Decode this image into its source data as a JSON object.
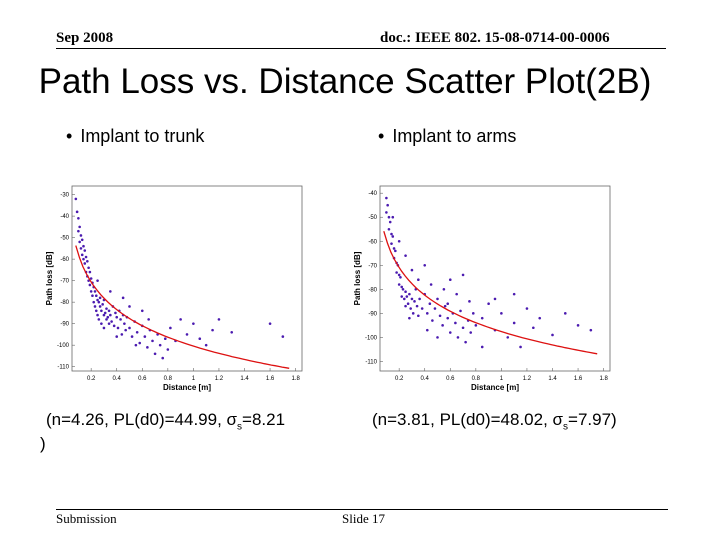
{
  "header": {
    "date": "Sep 2008",
    "doc_id": "doc.: IEEE 802. 15-08-0714-00-0006"
  },
  "slide_title": "Path Loss vs. Distance Scatter Plot(2B)",
  "bullets": [
    "Implant to trunk",
    "Implant to arms"
  ],
  "params": {
    "left_pre": "(n=4.26, PL(d0)=44.99, σ",
    "left_sub": "s",
    "left_post": "=8.21",
    "left_wrap": ")",
    "right_pre": "(n=3.81, PL(d0)=48.02, σ",
    "right_sub": "s",
    "right_post": "=7.97)"
  },
  "footer": {
    "submission": "Submission",
    "slide": "Slide 17"
  },
  "colors": {
    "points": "#4b1bb0",
    "fit_line": "#dd1111",
    "axes": "#666666"
  },
  "chart_data": [
    {
      "type": "scatter",
      "title": "Implant to trunk",
      "xlabel": "Distance [m]",
      "ylabel": "Path loss [dB]",
      "xlim": [
        0.05,
        1.85
      ],
      "ylim": [
        -112,
        -26
      ],
      "xticks": [
        0.2,
        0.4,
        0.6,
        0.8,
        1,
        1.2,
        1.4,
        1.6,
        1.8
      ],
      "xtick_labels": [
        "0.2",
        "0.4",
        "0.6",
        "0.8",
        "1",
        "1.2",
        "1.4",
        "1.6",
        "1.8"
      ],
      "yticks": [
        -30,
        -40,
        -50,
        -60,
        -70,
        -80,
        -90,
        -100,
        -110
      ],
      "ytick_labels": [
        "-30",
        "-40",
        "-50",
        "-60",
        "-70",
        "-80",
        "-90",
        "-100",
        "-110"
      ],
      "fit": {
        "n": 4.26,
        "pl_d0": 44.99,
        "d0": 0.05,
        "sigma": 8.21
      },
      "points": [
        [
          0.08,
          -32
        ],
        [
          0.09,
          -38
        ],
        [
          0.1,
          -41
        ],
        [
          0.1,
          -47
        ],
        [
          0.11,
          -45
        ],
        [
          0.11,
          -52
        ],
        [
          0.12,
          -49
        ],
        [
          0.12,
          -55
        ],
        [
          0.13,
          -51
        ],
        [
          0.13,
          -58
        ],
        [
          0.14,
          -54
        ],
        [
          0.14,
          -60
        ],
        [
          0.15,
          -56
        ],
        [
          0.15,
          -62
        ],
        [
          0.16,
          -59
        ],
        [
          0.16,
          -66
        ],
        [
          0.17,
          -61
        ],
        [
          0.17,
          -68
        ],
        [
          0.18,
          -64
        ],
        [
          0.18,
          -70
        ],
        [
          0.19,
          -66
        ],
        [
          0.19,
          -72
        ],
        [
          0.2,
          -69
        ],
        [
          0.2,
          -75
        ],
        [
          0.21,
          -71
        ],
        [
          0.21,
          -77
        ],
        [
          0.22,
          -73
        ],
        [
          0.22,
          -80
        ],
        [
          0.23,
          -75
        ],
        [
          0.23,
          -82
        ],
        [
          0.24,
          -77
        ],
        [
          0.24,
          -84
        ],
        [
          0.25,
          -79
        ],
        [
          0.25,
          -86
        ],
        [
          0.26,
          -80
        ],
        [
          0.26,
          -88
        ],
        [
          0.27,
          -82
        ],
        [
          0.27,
          -78
        ],
        [
          0.28,
          -84
        ],
        [
          0.28,
          -90
        ],
        [
          0.29,
          -81
        ],
        [
          0.3,
          -86
        ],
        [
          0.3,
          -79
        ],
        [
          0.31,
          -85
        ],
        [
          0.32,
          -88
        ],
        [
          0.32,
          -83
        ],
        [
          0.33,
          -87
        ],
        [
          0.34,
          -90
        ],
        [
          0.34,
          -84
        ],
        [
          0.35,
          -86
        ],
        [
          0.36,
          -89
        ],
        [
          0.37,
          -82
        ],
        [
          0.38,
          -91
        ],
        [
          0.39,
          -85
        ],
        [
          0.4,
          -87
        ],
        [
          0.41,
          -92
        ],
        [
          0.42,
          -84
        ],
        [
          0.43,
          -88
        ],
        [
          0.44,
          -95
        ],
        [
          0.45,
          -86
        ],
        [
          0.46,
          -90
        ],
        [
          0.47,
          -93
        ],
        [
          0.48,
          -87
        ],
        [
          0.5,
          -92
        ],
        [
          0.52,
          -96
        ],
        [
          0.54,
          -89
        ],
        [
          0.56,
          -94
        ],
        [
          0.58,
          -99
        ],
        [
          0.6,
          -91
        ],
        [
          0.62,
          -96
        ],
        [
          0.64,
          -101
        ],
        [
          0.66,
          -93
        ],
        [
          0.68,
          -98
        ],
        [
          0.7,
          -104
        ],
        [
          0.72,
          -95
        ],
        [
          0.74,
          -100
        ],
        [
          0.76,
          -106
        ],
        [
          0.78,
          -97
        ],
        [
          0.8,
          -102
        ],
        [
          0.82,
          -92
        ],
        [
          0.86,
          -98
        ],
        [
          0.9,
          -88
        ],
        [
          0.95,
          -95
        ],
        [
          1.0,
          -90
        ],
        [
          1.05,
          -97
        ],
        [
          1.1,
          -100
        ],
        [
          1.15,
          -93
        ],
        [
          1.2,
          -88
        ],
        [
          1.3,
          -94
        ],
        [
          1.6,
          -90
        ],
        [
          1.7,
          -96
        ],
        [
          0.35,
          -75
        ],
        [
          0.5,
          -82
        ],
        [
          0.6,
          -84
        ],
        [
          0.45,
          -78
        ],
        [
          0.25,
          -70
        ],
        [
          0.3,
          -92
        ],
        [
          0.4,
          -96
        ],
        [
          0.55,
          -100
        ],
        [
          0.65,
          -88
        ]
      ]
    },
    {
      "type": "scatter",
      "title": "Implant to arms",
      "xlabel": "Distance [m]",
      "ylabel": "Path loss [dB]",
      "xlim": [
        0.05,
        1.85
      ],
      "ylim": [
        -114,
        -37
      ],
      "xticks": [
        0.2,
        0.4,
        0.6,
        0.8,
        1,
        1.2,
        1.4,
        1.6,
        1.8
      ],
      "xtick_labels": [
        "0.2",
        "0.4",
        "0.6",
        "0.8",
        "1",
        "1.2",
        "1.4",
        "1.6",
        "1.8"
      ],
      "yticks": [
        -40,
        -50,
        -60,
        -70,
        -80,
        -90,
        -100,
        -110
      ],
      "ytick_labels": [
        "-40",
        "-50",
        "-60",
        "-70",
        "-80",
        "-90",
        "-100",
        "-110"
      ],
      "fit": {
        "n": 3.81,
        "pl_d0": 48.02,
        "d0": 0.05,
        "sigma": 7.97
      },
      "points": [
        [
          0.1,
          -42
        ],
        [
          0.1,
          -48
        ],
        [
          0.11,
          -45
        ],
        [
          0.12,
          -50
        ],
        [
          0.12,
          -55
        ],
        [
          0.13,
          -52
        ],
        [
          0.14,
          -57
        ],
        [
          0.14,
          -61
        ],
        [
          0.15,
          -58
        ],
        [
          0.16,
          -63
        ],
        [
          0.16,
          -67
        ],
        [
          0.17,
          -64
        ],
        [
          0.18,
          -69
        ],
        [
          0.18,
          -73
        ],
        [
          0.19,
          -70
        ],
        [
          0.2,
          -74
        ],
        [
          0.2,
          -78
        ],
        [
          0.21,
          -75
        ],
        [
          0.22,
          -79
        ],
        [
          0.22,
          -83
        ],
        [
          0.23,
          -80
        ],
        [
          0.24,
          -84
        ],
        [
          0.25,
          -81
        ],
        [
          0.25,
          -87
        ],
        [
          0.26,
          -83
        ],
        [
          0.27,
          -86
        ],
        [
          0.28,
          -82
        ],
        [
          0.29,
          -88
        ],
        [
          0.3,
          -84
        ],
        [
          0.31,
          -90
        ],
        [
          0.32,
          -85
        ],
        [
          0.33,
          -80
        ],
        [
          0.34,
          -87
        ],
        [
          0.35,
          -91
        ],
        [
          0.36,
          -84
        ],
        [
          0.38,
          -88
        ],
        [
          0.4,
          -82
        ],
        [
          0.42,
          -90
        ],
        [
          0.44,
          -86
        ],
        [
          0.46,
          -93
        ],
        [
          0.48,
          -88
        ],
        [
          0.5,
          -84
        ],
        [
          0.52,
          -91
        ],
        [
          0.54,
          -95
        ],
        [
          0.56,
          -87
        ],
        [
          0.58,
          -92
        ],
        [
          0.6,
          -98
        ],
        [
          0.62,
          -90
        ],
        [
          0.64,
          -94
        ],
        [
          0.66,
          -100
        ],
        [
          0.68,
          -89
        ],
        [
          0.7,
          -96
        ],
        [
          0.72,
          -102
        ],
        [
          0.74,
          -93
        ],
        [
          0.76,
          -98
        ],
        [
          0.78,
          -90
        ],
        [
          0.8,
          -95
        ],
        [
          0.85,
          -92
        ],
        [
          0.9,
          -86
        ],
        [
          0.95,
          -97
        ],
        [
          1.0,
          -90
        ],
        [
          1.05,
          -100
        ],
        [
          1.1,
          -94
        ],
        [
          1.15,
          -104
        ],
        [
          1.2,
          -88
        ],
        [
          1.25,
          -96
        ],
        [
          1.3,
          -92
        ],
        [
          1.4,
          -99
        ],
        [
          1.5,
          -90
        ],
        [
          1.6,
          -95
        ],
        [
          1.7,
          -97
        ],
        [
          0.3,
          -72
        ],
        [
          0.35,
          -76
        ],
        [
          0.45,
          -78
        ],
        [
          0.55,
          -80
        ],
        [
          0.65,
          -82
        ],
        [
          0.75,
          -85
        ],
        [
          0.25,
          -66
        ],
        [
          0.4,
          -70
        ],
        [
          0.6,
          -76
        ],
        [
          0.5,
          -100
        ],
        [
          0.85,
          -104
        ],
        [
          0.95,
          -84
        ],
        [
          1.1,
          -82
        ],
        [
          0.7,
          -74
        ],
        [
          0.2,
          -60
        ],
        [
          0.15,
          -50
        ],
        [
          0.28,
          -92
        ],
        [
          0.42,
          -97
        ],
        [
          0.58,
          -86
        ]
      ]
    }
  ]
}
